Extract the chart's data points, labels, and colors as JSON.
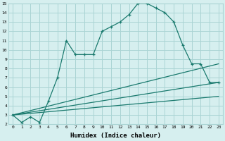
{
  "line1_x": [
    0,
    1,
    2,
    3,
    4,
    5,
    6,
    7,
    8,
    9,
    10,
    11,
    12,
    13,
    14,
    15,
    16,
    17,
    18,
    19,
    20,
    21,
    22,
    23
  ],
  "line1_y": [
    3,
    2.2,
    2.8,
    2.2,
    4.5,
    7.0,
    11.0,
    9.5,
    9.5,
    9.5,
    12.0,
    12.5,
    13.0,
    13.8,
    15.0,
    15.0,
    14.5,
    14.0,
    13.0,
    10.5,
    8.5,
    8.5,
    6.5,
    6.5
  ],
  "line2_x": [
    0,
    23
  ],
  "line2_y": [
    3.0,
    8.5
  ],
  "line3_x": [
    0,
    23
  ],
  "line3_y": [
    3.0,
    6.5
  ],
  "line4_x": [
    0,
    23
  ],
  "line4_y": [
    3.0,
    5.0
  ],
  "line_color": "#1a7a6e",
  "bg_color": "#d6efef",
  "grid_color": "#aad4d4",
  "xlabel": "Humidex (Indice chaleur)",
  "xlim": [
    -0.5,
    23.5
  ],
  "ylim": [
    2,
    15
  ],
  "yticks": [
    2,
    3,
    4,
    5,
    6,
    7,
    8,
    9,
    10,
    11,
    12,
    13,
    14,
    15
  ],
  "xticks": [
    0,
    1,
    2,
    3,
    4,
    5,
    6,
    7,
    8,
    9,
    10,
    11,
    12,
    13,
    14,
    15,
    16,
    17,
    18,
    19,
    20,
    21,
    22,
    23
  ]
}
